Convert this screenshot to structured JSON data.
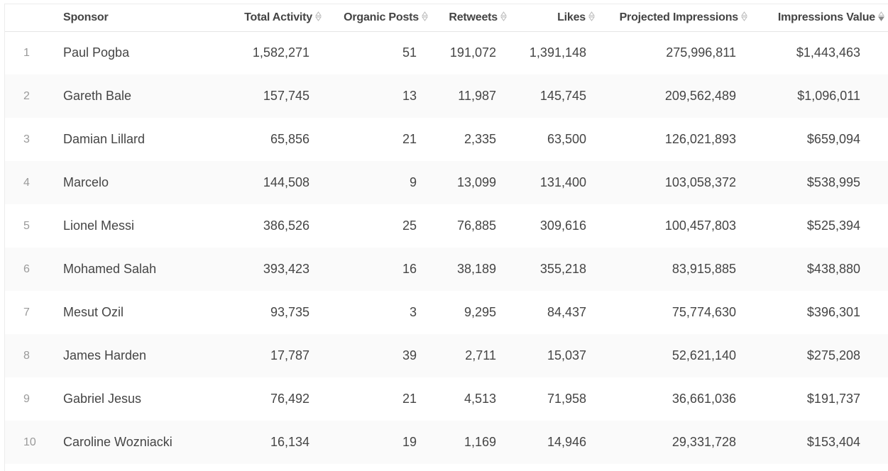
{
  "table": {
    "columns": [
      {
        "key": "rank",
        "label": ""
      },
      {
        "key": "sponsor",
        "label": "Sponsor"
      },
      {
        "key": "total_activity",
        "label": "Total Activity",
        "sortable": true
      },
      {
        "key": "organic_posts",
        "label": "Organic Posts",
        "sortable": true
      },
      {
        "key": "retweets",
        "label": "Retweets",
        "sortable": true
      },
      {
        "key": "likes",
        "label": "Likes",
        "sortable": true
      },
      {
        "key": "projected_impressions",
        "label": "Projected Impressions",
        "sortable": true
      },
      {
        "key": "impressions_value",
        "label": "Impressions Value",
        "sortable": true,
        "sort_state": "descending"
      }
    ],
    "sort_icon": "sort-up-down-icon",
    "colors": {
      "header_text": "#444444",
      "cell_text": "#454545",
      "rank_text": "#9a9a9a",
      "stripe": "#fafafa",
      "border": "#e6e6e6",
      "sort_inactive": "#b8b8b8",
      "sort_active": "#8a8a8a"
    },
    "rows": [
      {
        "rank": "1",
        "sponsor": "Paul Pogba",
        "total_activity": "1,582,271",
        "organic_posts": "51",
        "retweets": "191,072",
        "likes": "1,391,148",
        "projected_impressions": "275,996,811",
        "impressions_value": "$1,443,463"
      },
      {
        "rank": "2",
        "sponsor": "Gareth Bale",
        "total_activity": "157,745",
        "organic_posts": "13",
        "retweets": "11,987",
        "likes": "145,745",
        "projected_impressions": "209,562,489",
        "impressions_value": "$1,096,011"
      },
      {
        "rank": "3",
        "sponsor": "Damian Lillard",
        "total_activity": "65,856",
        "organic_posts": "21",
        "retweets": "2,335",
        "likes": "63,500",
        "projected_impressions": "126,021,893",
        "impressions_value": "$659,094"
      },
      {
        "rank": "4",
        "sponsor": "Marcelo",
        "total_activity": "144,508",
        "organic_posts": "9",
        "retweets": "13,099",
        "likes": "131,400",
        "projected_impressions": "103,058,372",
        "impressions_value": "$538,995"
      },
      {
        "rank": "5",
        "sponsor": "Lionel Messi",
        "total_activity": "386,526",
        "organic_posts": "25",
        "retweets": "76,885",
        "likes": "309,616",
        "projected_impressions": "100,457,803",
        "impressions_value": "$525,394"
      },
      {
        "rank": "6",
        "sponsor": "Mohamed Salah",
        "total_activity": "393,423",
        "organic_posts": "16",
        "retweets": "38,189",
        "likes": "355,218",
        "projected_impressions": "83,915,885",
        "impressions_value": "$438,880"
      },
      {
        "rank": "7",
        "sponsor": "Mesut Ozil",
        "total_activity": "93,735",
        "organic_posts": "3",
        "retweets": "9,295",
        "likes": "84,437",
        "projected_impressions": "75,774,630",
        "impressions_value": "$396,301"
      },
      {
        "rank": "8",
        "sponsor": "James Harden",
        "total_activity": "17,787",
        "organic_posts": "39",
        "retweets": "2,711",
        "likes": "15,037",
        "projected_impressions": "52,621,140",
        "impressions_value": "$275,208"
      },
      {
        "rank": "9",
        "sponsor": "Gabriel Jesus",
        "total_activity": "76,492",
        "organic_posts": "21",
        "retweets": "4,513",
        "likes": "71,958",
        "projected_impressions": "36,661,036",
        "impressions_value": "$191,737"
      },
      {
        "rank": "10",
        "sponsor": "Caroline Wozniacki",
        "total_activity": "16,134",
        "organic_posts": "19",
        "retweets": "1,169",
        "likes": "14,946",
        "projected_impressions": "29,331,728",
        "impressions_value": "$153,404"
      }
    ]
  }
}
